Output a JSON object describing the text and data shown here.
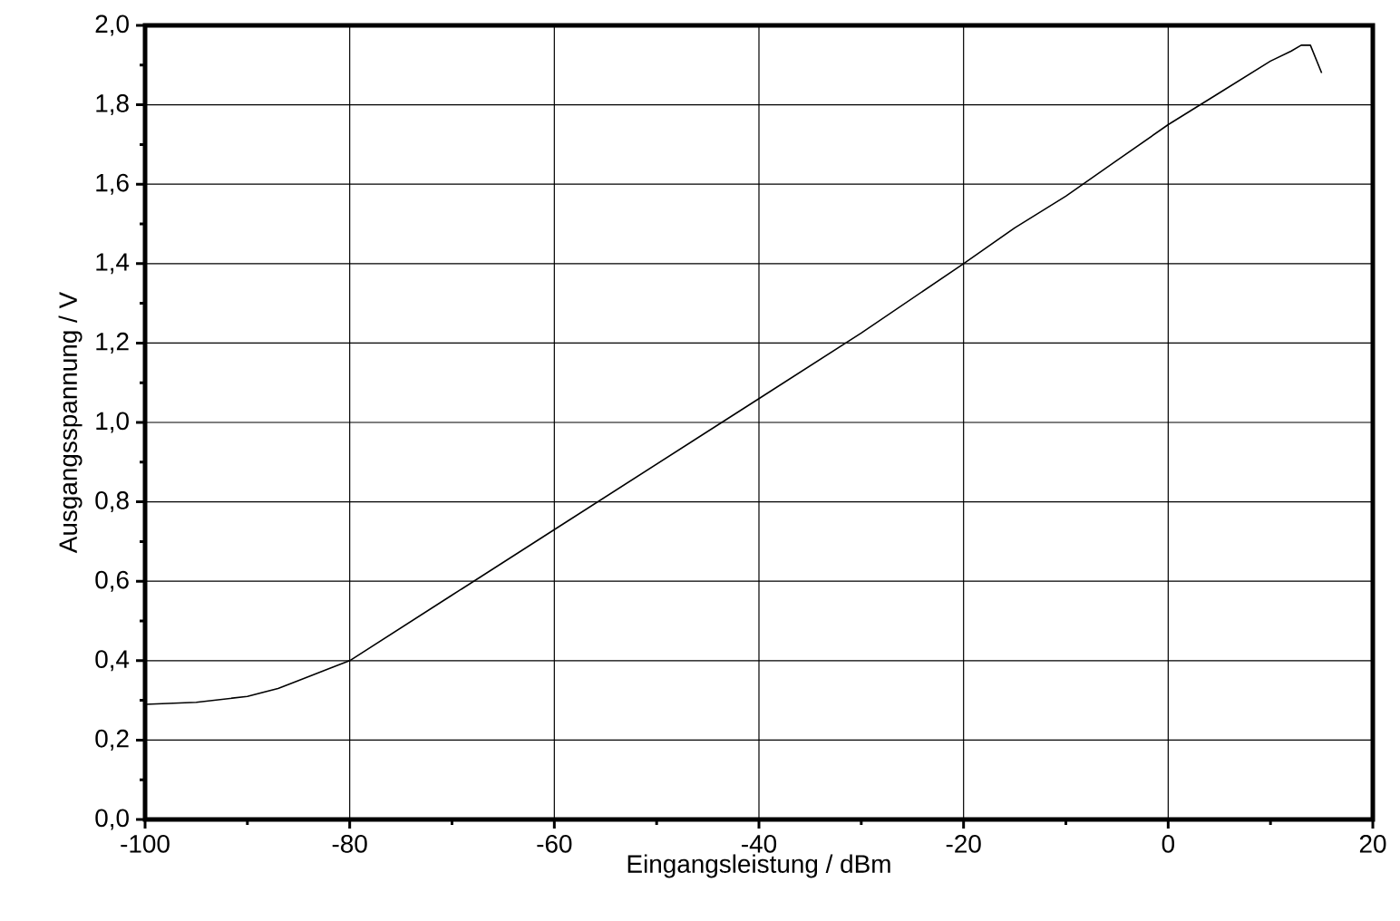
{
  "chart_data": {
    "type": "line",
    "xlabel": "Eingangsleistung  / dBm",
    "ylabel": "Ausgangsspannung  / V",
    "x": [
      -100,
      -95,
      -90,
      -87,
      -85,
      -82,
      -80,
      -70,
      -60,
      -50,
      -40,
      -30,
      -20,
      -15,
      -10,
      -5,
      0,
      5,
      10,
      12,
      13,
      13.9,
      15
    ],
    "series": [
      {
        "color": "#000000",
        "values": [
          0.29,
          0.295,
          0.31,
          0.33,
          0.35,
          0.38,
          0.4,
          0.565,
          0.73,
          0.895,
          1.06,
          1.225,
          1.4,
          1.49,
          1.57,
          1.66,
          1.75,
          1.83,
          1.91,
          1.935,
          1.95,
          1.95,
          1.88
        ]
      }
    ],
    "xlim": [
      -100,
      20
    ],
    "ylim": [
      0,
      2
    ],
    "xticks": [
      -100,
      -80,
      -60,
      -40,
      -20,
      0,
      20
    ],
    "yticks": [
      {
        "value": 0,
        "label": "0,0"
      },
      {
        "value": 0.2,
        "label": "0,2"
      },
      {
        "value": 0.4,
        "label": "0,4"
      },
      {
        "value": 0.6,
        "label": "0,6"
      },
      {
        "value": 0.8,
        "label": "0,8"
      },
      {
        "value": 1.0,
        "label": "1,0"
      },
      {
        "value": 1.2,
        "label": "1,2"
      },
      {
        "value": 1.4,
        "label": "1,4"
      },
      {
        "value": 1.6,
        "label": "1,6"
      },
      {
        "value": 1.8,
        "label": "1,8"
      },
      {
        "value": 2.0,
        "label": "2,0"
      }
    ],
    "grid": true,
    "marker": "none",
    "line_style": "solid"
  }
}
